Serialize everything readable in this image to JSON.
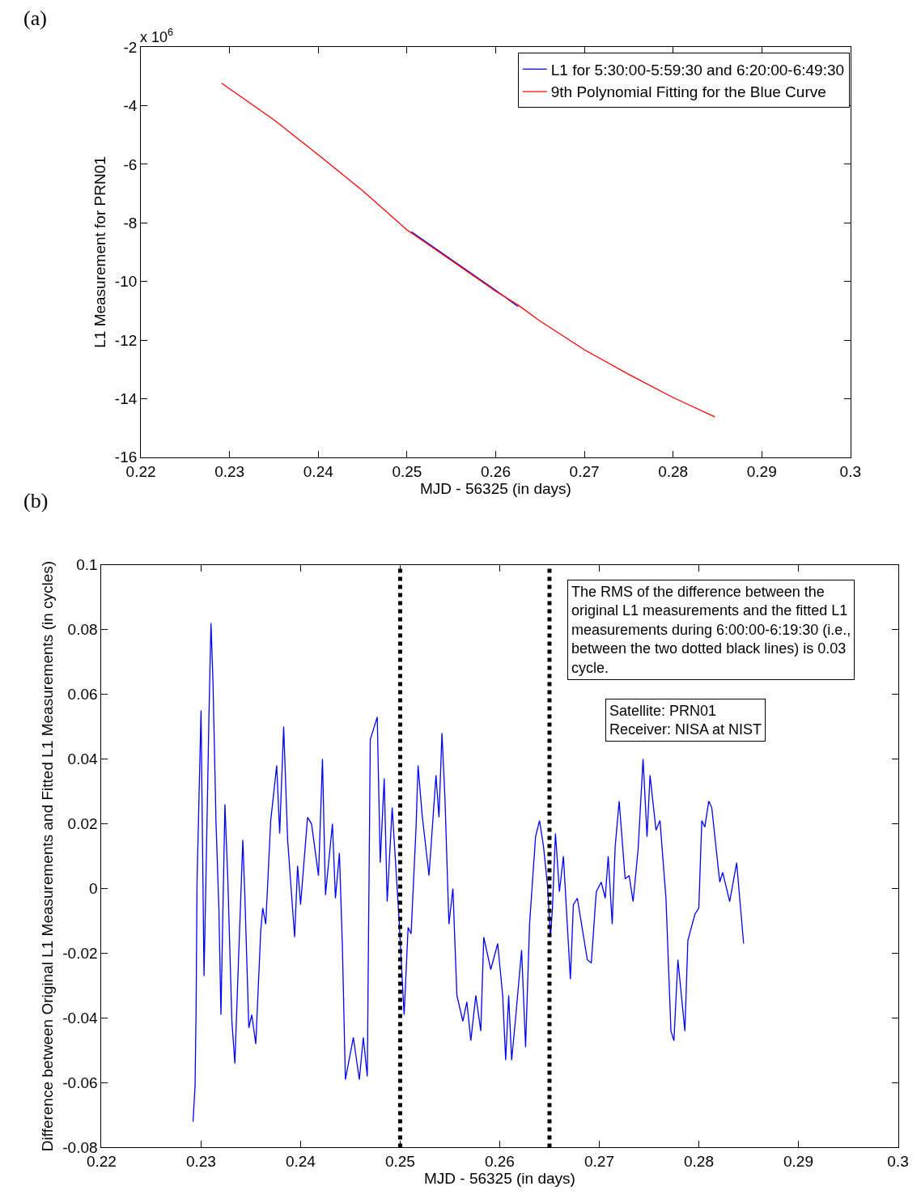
{
  "chart_data": [
    {
      "type": "line",
      "xlabel": "MJD - 56325 (in days)",
      "ylabel": "L1 Measurement for PRN01",
      "xlim": [
        0.22,
        0.3
      ],
      "xticks": [
        0.22,
        0.23,
        0.24,
        0.25,
        0.26,
        0.27,
        0.28,
        0.29,
        0.3
      ],
      "ylim": [
        -16,
        -2
      ],
      "yticks": [
        -16,
        -14,
        -12,
        -10,
        -8,
        -6,
        -4,
        -2
      ],
      "legend": "top right",
      "annotations": [
        "(a)",
        "x 10$^{6}$"
      ],
      "series": [
        {
          "name": "L1 for 5:30:00-5:59:30 and 6:20:00-6:49:30",
          "color": "#0000ff",
          "x": [
            0.2505,
            0.255,
            0.26,
            0.2625
          ],
          "values": [
            -8.3,
            -9.25,
            -10.3,
            -10.85
          ]
        },
        {
          "name": "9th Polynomial Fitting for the Blue Curve",
          "color": "#ff0000",
          "x": [
            0.2291,
            0.235,
            0.24,
            0.245,
            0.25,
            0.255,
            0.26,
            0.2625,
            0.265,
            0.27,
            0.275,
            0.28,
            0.2847
          ],
          "values": [
            -3.23,
            -4.48,
            -5.68,
            -6.9,
            -8.24,
            -9.28,
            -10.33,
            -10.8,
            -11.35,
            -12.33,
            -13.17,
            -13.96,
            -14.62
          ]
        }
      ]
    },
    {
      "type": "line",
      "xlabel": "MJD - 56325 (in days)",
      "ylabel": "Difference between Original L1 Measurements and Fitted L1 Measurements (in cycles)",
      "xlim": [
        0.22,
        0.3
      ],
      "xticks": [
        0.22,
        0.23,
        0.24,
        0.25,
        0.26,
        0.27,
        0.28,
        0.29,
        0.3
      ],
      "ylim": [
        -0.08,
        0.1
      ],
      "yticks": [
        -0.08,
        -0.06,
        -0.04,
        -0.02,
        0,
        0.02,
        0.04,
        0.06,
        0.08,
        0.1
      ],
      "annotations": [
        "(b)",
        "The RMS of the difference between the\noriginal L1 measurements and the fitted L1\nmeasurements during 6:00:00-6:19:30 (i.e.,\nbetween the two dotted black lines) is 0.03\ncycle.",
        "Satellite: PRN01\nReceiver: NISA at NIST"
      ],
      "ref_lines": [
        {
          "axis": "x",
          "value": 0.25,
          "color": "#000000",
          "line_style": "dotted"
        },
        {
          "axis": "x",
          "value": 0.265,
          "color": "#000000",
          "line_style": "dotted"
        }
      ],
      "series": [
        {
          "color": "#0000ff",
          "x": [
            0.2292,
            0.2294,
            0.2295,
            0.2296,
            0.23,
            0.2303,
            0.2305,
            0.2308,
            0.231,
            0.2312,
            0.2315,
            0.2318,
            0.232,
            0.2324,
            0.2327,
            0.2331,
            0.2334,
            0.2338,
            0.2342,
            0.2344,
            0.2348,
            0.2351,
            0.2355,
            0.236,
            0.2362,
            0.2365,
            0.237,
            0.2376,
            0.2379,
            0.2383,
            0.2387,
            0.2394,
            0.2397,
            0.24,
            0.2407,
            0.2411,
            0.2418,
            0.2422,
            0.2425,
            0.2432,
            0.2435,
            0.2439,
            0.2442,
            0.2445,
            0.2453,
            0.2459,
            0.2463,
            0.2467,
            0.247,
            0.2477,
            0.248,
            0.2484,
            0.2487,
            0.2492,
            0.2499,
            0.2504,
            0.2508,
            0.2511,
            0.2516,
            0.2518,
            0.2522,
            0.2529,
            0.2536,
            0.2539,
            0.2542,
            0.2545,
            0.2549,
            0.2553,
            0.2557,
            0.2563,
            0.2567,
            0.2571,
            0.2576,
            0.2581,
            0.2584,
            0.2591,
            0.2598,
            0.2603,
            0.2606,
            0.2609,
            0.2612,
            0.2616,
            0.2622,
            0.2626,
            0.263,
            0.2636,
            0.264,
            0.2644,
            0.2648,
            0.2651,
            0.2653,
            0.2656,
            0.266,
            0.2664,
            0.2671,
            0.2674,
            0.2678,
            0.2688,
            0.2692,
            0.2697,
            0.2702,
            0.2706,
            0.2709,
            0.2713,
            0.2716,
            0.272,
            0.2726,
            0.273,
            0.2734,
            0.2739,
            0.2744,
            0.2748,
            0.2751,
            0.2757,
            0.2761,
            0.2767,
            0.2772,
            0.2775,
            0.2779,
            0.2786,
            0.2789,
            0.2796,
            0.28,
            0.2803,
            0.2806,
            0.281,
            0.2813,
            0.2821,
            0.2824,
            0.2831,
            0.2838,
            0.2845
          ],
          "values": [
            -0.072,
            -0.061,
            -0.039,
            0.002,
            0.055,
            -0.027,
            0.004,
            0.054,
            0.082,
            0.064,
            0.021,
            -0.007,
            -0.039,
            0.026,
            0.002,
            -0.041,
            -0.054,
            -0.019,
            0.015,
            -0.002,
            -0.043,
            -0.039,
            -0.048,
            -0.013,
            -0.006,
            -0.011,
            0.021,
            0.038,
            0.017,
            0.05,
            0.015,
            -0.015,
            0.007,
            -0.005,
            0.022,
            0.02,
            0.004,
            0.04,
            -0.002,
            0.02,
            -0.003,
            0.011,
            -0.018,
            -0.059,
            -0.046,
            -0.059,
            -0.046,
            -0.058,
            0.046,
            0.053,
            0.008,
            0.034,
            -0.004,
            0.025,
            -0.01,
            -0.039,
            -0.012,
            -0.014,
            0.019,
            0.038,
            0.023,
            0.004,
            0.035,
            0.022,
            0.048,
            0.028,
            -0.011,
            0.0,
            -0.033,
            -0.041,
            -0.035,
            -0.047,
            -0.033,
            -0.044,
            -0.015,
            -0.025,
            -0.017,
            -0.033,
            -0.053,
            -0.033,
            -0.053,
            -0.04,
            -0.019,
            -0.049,
            -0.011,
            0.016,
            0.021,
            0.013,
            0.001,
            -0.015,
            -0.006,
            0.017,
            -0.001,
            0.01,
            -0.028,
            -0.005,
            -0.003,
            -0.022,
            -0.023,
            -0.001,
            0.002,
            -0.003,
            0.01,
            -0.011,
            0.013,
            0.027,
            0.003,
            0.004,
            -0.004,
            0.012,
            0.04,
            0.016,
            0.035,
            0.018,
            0.021,
            -0.003,
            -0.044,
            -0.047,
            -0.022,
            -0.044,
            -0.016,
            -0.008,
            -0.006,
            0.021,
            0.019,
            0.027,
            0.025,
            0.002,
            0.005,
            -0.004,
            0.008,
            -0.017
          ]
        }
      ]
    }
  ]
}
